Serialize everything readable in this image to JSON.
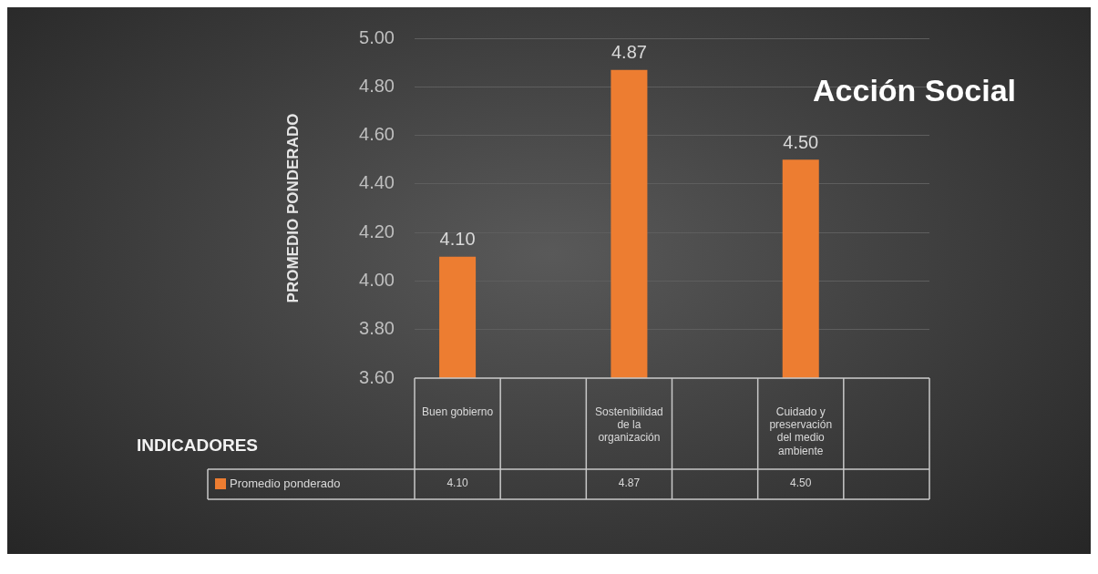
{
  "chart_data": {
    "type": "bar",
    "title": "Acción Social",
    "ylabel": "PROMEDIO PONDERADO",
    "annotations": [
      "INDICADORES"
    ],
    "categories": [
      "Buen gobierno",
      null,
      "Sostenibilidad de la organización",
      null,
      "Cuidado y preservación del medio ambiente",
      null
    ],
    "series": [
      {
        "name": "Promedio ponderado",
        "color": "#ed7d31",
        "values": [
          4.1,
          null,
          4.87,
          null,
          4.5,
          null
        ],
        "value_labels": [
          "4.10",
          null,
          "4.87",
          null,
          "4.50",
          null
        ]
      }
    ],
    "ylim": [
      3.6,
      5.0
    ],
    "yticks": [
      {
        "value": 3.6,
        "label": "3.60"
      },
      {
        "value": 3.8,
        "label": "3.80"
      },
      {
        "value": 4.0,
        "label": "4.00"
      },
      {
        "value": 4.2,
        "label": "4.20"
      },
      {
        "value": 4.4,
        "label": "4.40"
      },
      {
        "value": 4.6,
        "label": "4.60"
      },
      {
        "value": 4.8,
        "label": "4.80"
      },
      {
        "value": 5.0,
        "label": "5.00"
      }
    ],
    "grid": "y",
    "legend": "bottom left"
  }
}
